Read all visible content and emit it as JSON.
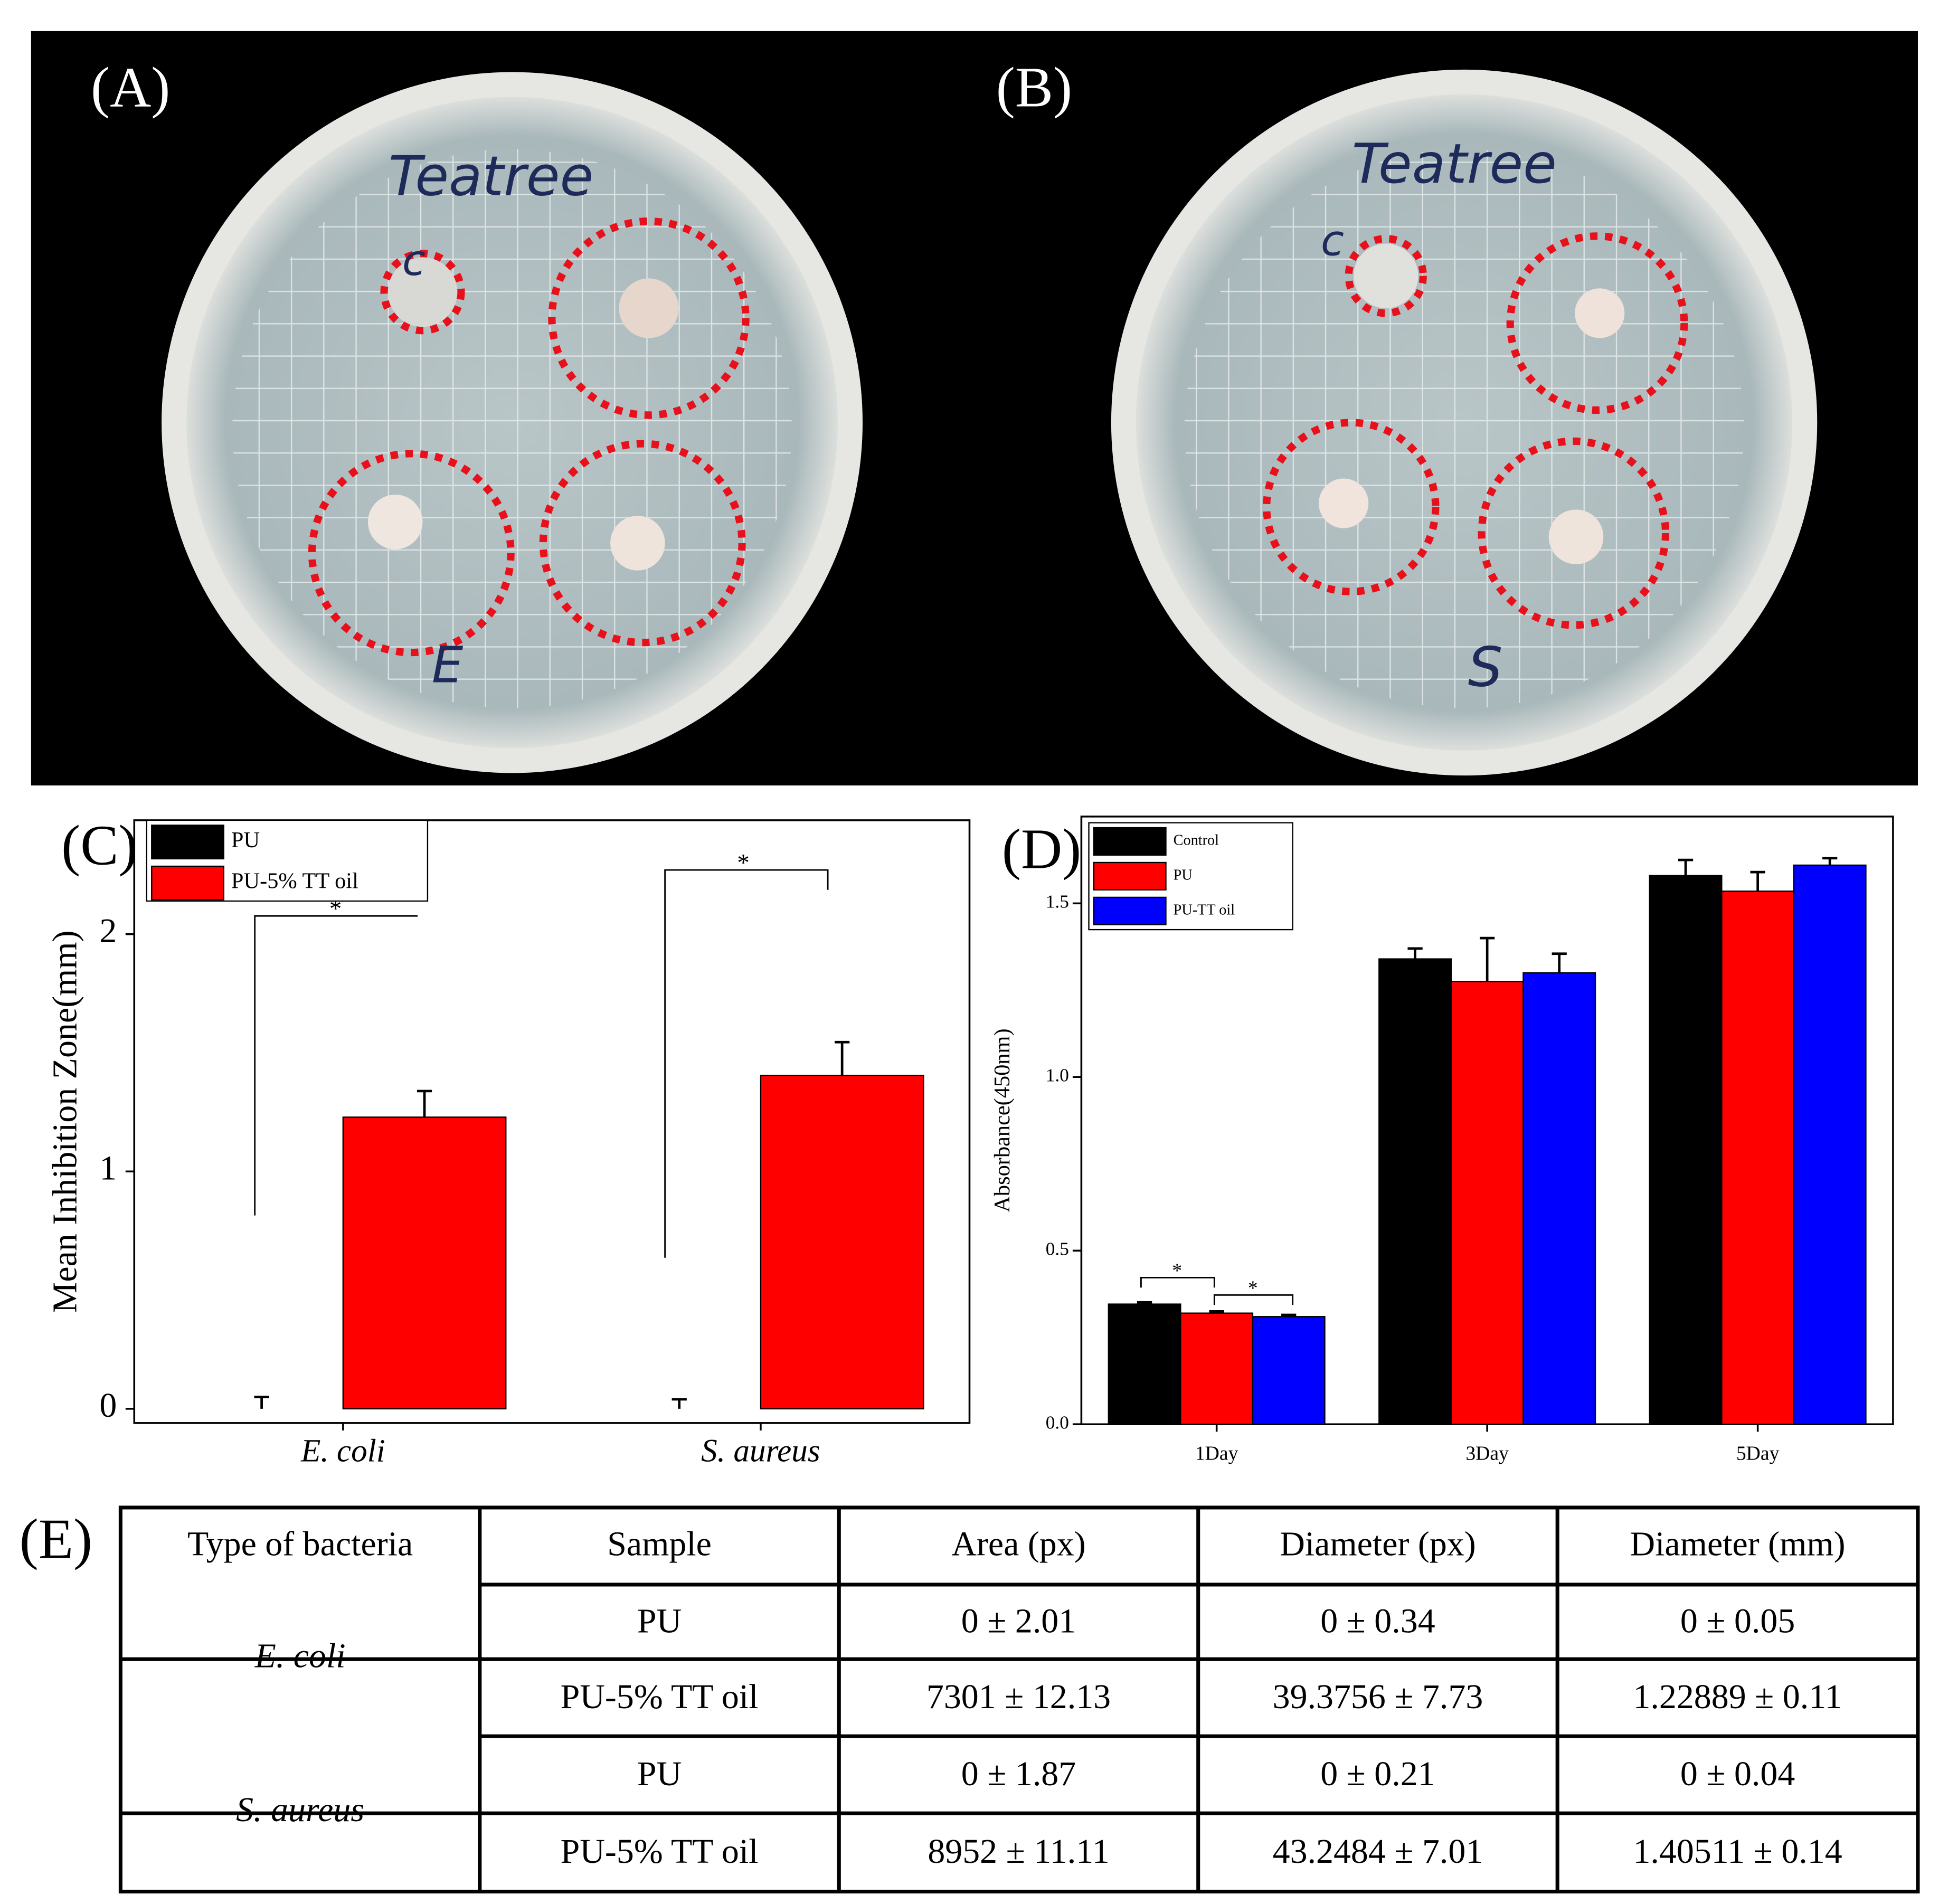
{
  "photos": [
    {
      "label": "(A)",
      "writing": [
        "Teatree",
        "c",
        "E"
      ]
    },
    {
      "label": "(B)",
      "writing": [
        "Teatree",
        "c",
        "S"
      ]
    }
  ],
  "chart_data": [
    {
      "type": "bar",
      "panel": "(C)",
      "y_label": "Mean Inhibition Zone(mm)",
      "categories": [
        "E. coli",
        "S. aureus"
      ],
      "series": [
        {
          "name": "PU",
          "color": "#000000",
          "values": [
            0,
            0
          ],
          "errors": [
            0.05,
            0.04
          ]
        },
        {
          "name": "PU-5% TT oil",
          "color": "#ff0000",
          "values": [
            1.22889,
            1.40511
          ],
          "errors": [
            0.11,
            0.14
          ]
        }
      ],
      "ylim": [
        -0.06,
        2.48
      ],
      "yticks": [
        0,
        1,
        2
      ],
      "legend": "upper left",
      "annotations": [
        "*",
        "*"
      ]
    },
    {
      "type": "bar",
      "panel": "(D)",
      "y_label": "Absorbance(450nm)",
      "categories": [
        "1Day",
        "3Day",
        "5Day"
      ],
      "series": [
        {
          "name": "Control",
          "color": "#000000",
          "values": [
            0.346,
            1.34,
            1.58
          ],
          "errors": [
            0.005,
            0.03,
            0.045
          ]
        },
        {
          "name": "PU",
          "color": "#ff0000",
          "values": [
            0.32,
            1.275,
            1.535
          ],
          "errors": [
            0.005,
            0.125,
            0.055
          ]
        },
        {
          "name": "PU-TT oil",
          "color": "#0000ff",
          "values": [
            0.31,
            1.3,
            1.61
          ],
          "errors": [
            0.005,
            0.055,
            0.02
          ]
        }
      ],
      "ylim": [
        0,
        1.75
      ],
      "yticks": [
        {
          "value": 0,
          "label": "0.0"
        },
        0.5,
        {
          "value": 1,
          "label": "1.0"
        },
        1.5
      ],
      "legend": "upper left",
      "annotations": [
        "*",
        "*"
      ]
    }
  ],
  "table": {
    "label": "(E)",
    "header": [
      "Type  of bacteria",
      "Sample",
      "Area (px)",
      "Diameter (px)",
      "Diameter (mm)"
    ],
    "groups": [
      {
        "bacteria": "E. coli",
        "rows": [
          [
            "PU",
            "0 ± 2.01",
            "0 ± 0.34",
            "0 ± 0.05"
          ],
          [
            "PU-5% TT oil",
            "7301 ± 12.13",
            "39.3756 ± 7.73",
            "1.22889 ± 0.11"
          ]
        ]
      },
      {
        "bacteria": "S. aureus",
        "rows": [
          [
            "PU",
            "0 ± 1.87",
            "0 ± 0.21",
            "0 ± 0.04"
          ],
          [
            "PU-5% TT oil",
            "8952 ± 11.11",
            "43.2484 ± 7.01",
            "1.40511 ± 0.14"
          ]
        ]
      }
    ]
  }
}
